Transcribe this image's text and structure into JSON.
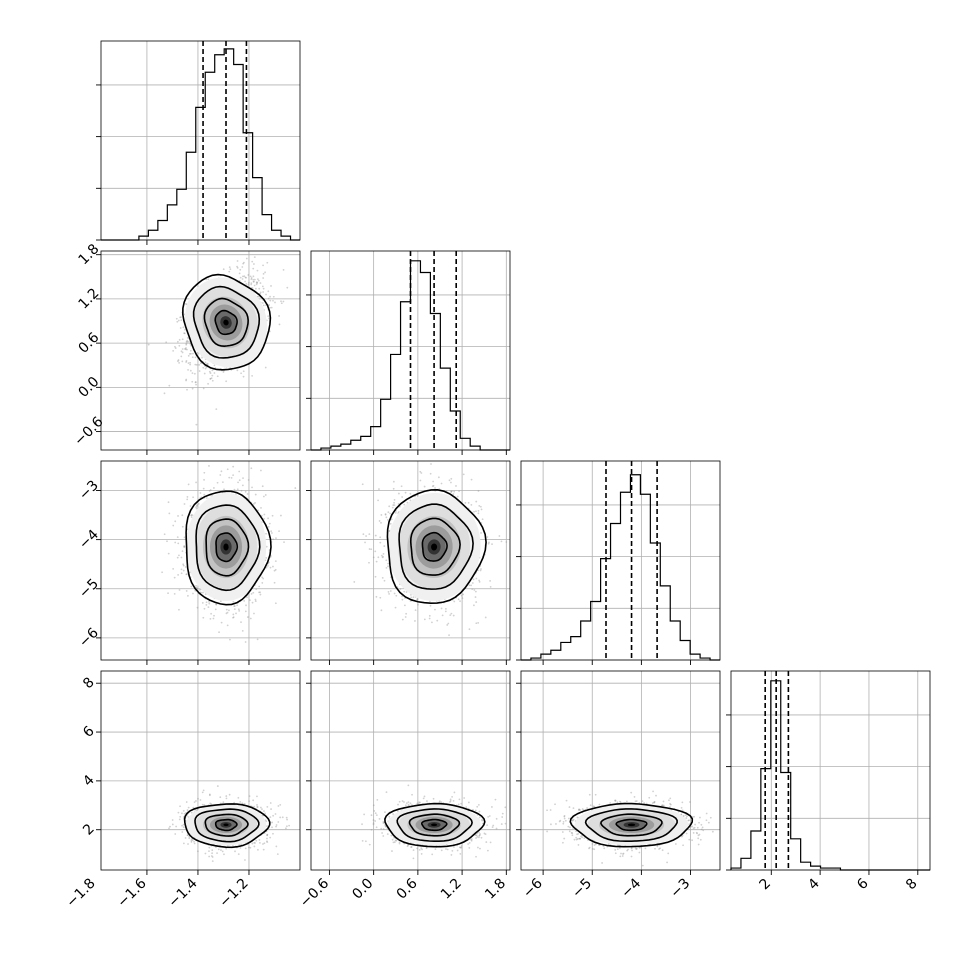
{
  "chart_data": {
    "type": "corner",
    "parameters": [
      {
        "index": 0,
        "range": [
          -1.78,
          -1.0
        ],
        "median": -1.29,
        "q16": -1.38,
        "q84": -1.21,
        "ticks": [
          -1.8,
          -1.6,
          -1.4,
          -1.2
        ],
        "tick_labels": [
          "−1.8",
          "−1.6",
          "−1.4",
          "−1.2"
        ],
        "hist_ticks": [
          0,
          1,
          2,
          3
        ]
      },
      {
        "index": 1,
        "range": [
          -0.85,
          1.85
        ],
        "median": 0.82,
        "q16": 0.5,
        "q84": 1.12,
        "ticks": [
          -0.6,
          0.0,
          0.6,
          1.2,
          1.8
        ],
        "tick_labels": [
          "−0.6",
          "0.0",
          "0.6",
          "1.2",
          "1.8"
        ],
        "hist_ticks": [
          0,
          1,
          2,
          3
        ]
      },
      {
        "index": 2,
        "range": [
          -6.45,
          -2.4
        ],
        "median": -4.2,
        "q16": -4.72,
        "q84": -3.68,
        "ticks": [
          -6,
          -5,
          -4,
          -3
        ],
        "tick_labels": [
          "−6",
          "−5",
          "−4",
          "−3"
        ],
        "hist_ticks": [
          0,
          1,
          2,
          3
        ]
      },
      {
        "index": 3,
        "range": [
          0.35,
          8.5
        ],
        "median": 2.2,
        "q16": 1.75,
        "q84": 2.7,
        "ticks": [
          2,
          4,
          6,
          8
        ],
        "tick_labels": [
          "2",
          "4",
          "6",
          "8"
        ],
        "hist_ticks": [
          0,
          1,
          2,
          3
        ]
      }
    ],
    "histograms": [
      [
        0,
        0,
        0,
        0,
        0.02,
        0.05,
        0.1,
        0.18,
        0.26,
        0.45,
        0.68,
        0.86,
        0.95,
        0.98,
        0.9,
        0.55,
        0.32,
        0.13,
        0.05,
        0.02,
        0.0
      ],
      [
        0,
        0.01,
        0.02,
        0.03,
        0.05,
        0.07,
        0.12,
        0.26,
        0.49,
        0.76,
        0.97,
        0.91,
        0.7,
        0.42,
        0.2,
        0.06,
        0.02,
        0.0,
        0.0,
        0.0
      ],
      [
        0,
        0.01,
        0.03,
        0.05,
        0.09,
        0.12,
        0.2,
        0.3,
        0.52,
        0.7,
        0.86,
        0.95,
        0.85,
        0.6,
        0.38,
        0.2,
        0.1,
        0.03,
        0.01,
        0.0
      ],
      [
        0.01,
        0.06,
        0.2,
        0.52,
        0.97,
        0.5,
        0.16,
        0.04,
        0.02,
        0.01,
        0.01,
        0,
        0,
        0,
        0,
        0,
        0,
        0,
        0,
        0
      ]
    ],
    "joint": [
      {
        "row": 1,
        "col": 0,
        "cx": -1.29,
        "cy": 0.88,
        "sx": 0.075,
        "sy": 0.31,
        "rho": 0.35
      },
      {
        "row": 2,
        "col": 0,
        "cx": -1.29,
        "cy": -4.15,
        "sx": 0.075,
        "sy": 0.55,
        "rho": 0.0
      },
      {
        "row": 2,
        "col": 1,
        "cx": 0.82,
        "cy": -4.15,
        "sx": 0.3,
        "sy": 0.55,
        "rho": -0.05
      },
      {
        "row": 3,
        "col": 0,
        "cx": -1.29,
        "cy": 2.2,
        "sx": 0.075,
        "sy": 0.42,
        "rho": 0.0
      },
      {
        "row": 3,
        "col": 1,
        "cx": 0.82,
        "cy": 2.2,
        "sx": 0.3,
        "sy": 0.42,
        "rho": 0.0
      },
      {
        "row": 3,
        "col": 2,
        "cx": -4.2,
        "cy": 2.2,
        "sx": 0.55,
        "sy": 0.42,
        "rho": 0.0
      }
    ],
    "contour_levels_sigma": [
      0.5,
      1.0,
      1.5,
      2.0
    ],
    "grid": true,
    "title": "",
    "xlabel": "",
    "ylabel": ""
  }
}
